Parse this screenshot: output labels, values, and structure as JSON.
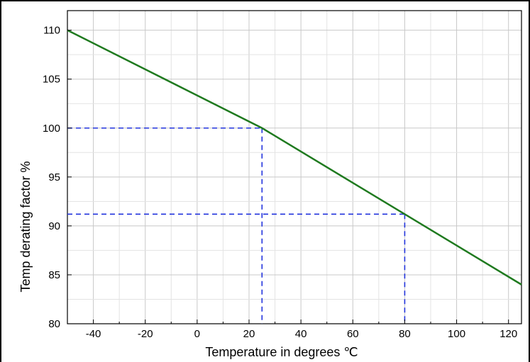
{
  "chart_data": {
    "type": "line",
    "title": "",
    "xlabel": "Temperature in degrees ℃",
    "ylabel": "Temp derating factor %",
    "xlim": [
      -50,
      125
    ],
    "ylim": [
      80,
      112
    ],
    "x_ticks": [
      -40,
      -20,
      0,
      20,
      40,
      60,
      80,
      100,
      120
    ],
    "y_ticks": [
      80,
      85,
      90,
      95,
      100,
      105,
      110
    ],
    "grid": true,
    "series": [
      {
        "x": [
          -50,
          25,
          125
        ],
        "y": [
          110,
          100,
          84
        ],
        "color": "#1f7a1f"
      }
    ],
    "reference_lines": [
      {
        "x": 25,
        "y": 100,
        "color": "#2233dd"
      },
      {
        "x": 80,
        "y": 91.2,
        "color": "#2233dd"
      }
    ]
  }
}
